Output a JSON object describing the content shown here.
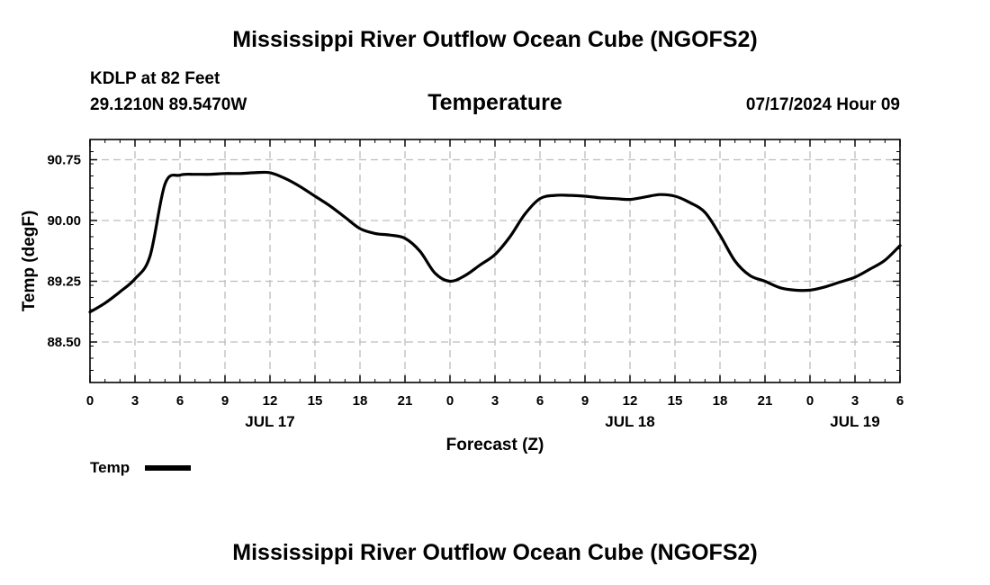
{
  "header": {
    "title": "Mississippi River Outflow Ocean Cube (NGOFS2)",
    "station": "KDLP at 82 Feet",
    "coords": "29.1210N  89.5470W",
    "variable": "Temperature",
    "datetime": "07/17/2024 Hour 09"
  },
  "footer": {
    "title": "Mississippi River Outflow Ocean Cube (NGOFS2)"
  },
  "chart_data": {
    "type": "line",
    "title": "Temperature",
    "xlabel": "Forecast (Z)",
    "ylabel": "Temp (degF)",
    "ylim": [
      88.0,
      91.0
    ],
    "xlim": [
      0,
      54
    ],
    "grid": true,
    "x_ticks": [
      0,
      3,
      6,
      9,
      12,
      15,
      18,
      21,
      24,
      27,
      30,
      33,
      36,
      39,
      42,
      45,
      48,
      51,
      54
    ],
    "x_tick_labels": [
      "0",
      "3",
      "6",
      "9",
      "12",
      "15",
      "18",
      "21",
      "0",
      "3",
      "6",
      "9",
      "12",
      "15",
      "18",
      "21",
      "0",
      "3",
      "6"
    ],
    "date_labels": [
      {
        "hour": 12,
        "label": "JUL 17"
      },
      {
        "hour": 36,
        "label": "JUL 18"
      },
      {
        "hour": 51,
        "label": "JUL 19"
      }
    ],
    "y_ticks": [
      88.5,
      89.25,
      90.0,
      90.75
    ],
    "y_tick_labels": [
      "88.50",
      "89.25",
      "90.00",
      "90.75"
    ],
    "legend": {
      "label": "Temp",
      "position": "bottom-left"
    },
    "series": [
      {
        "name": "Temp",
        "x": [
          0,
          1,
          2,
          3,
          4,
          5,
          6,
          7,
          8,
          9,
          10,
          11,
          12,
          13,
          14,
          15,
          16,
          17,
          18,
          19,
          20,
          21,
          22,
          23,
          24,
          25,
          26,
          27,
          28,
          29,
          30,
          31,
          32,
          33,
          34,
          35,
          36,
          37,
          38,
          39,
          40,
          41,
          42,
          43,
          44,
          45,
          46,
          47,
          48,
          49,
          50,
          51,
          52,
          53,
          54
        ],
        "values": [
          88.87,
          88.98,
          89.12,
          89.28,
          89.56,
          90.45,
          90.56,
          90.57,
          90.57,
          90.58,
          90.58,
          90.59,
          90.59,
          90.52,
          90.42,
          90.3,
          90.18,
          90.04,
          89.9,
          89.84,
          89.82,
          89.78,
          89.62,
          89.35,
          89.25,
          89.32,
          89.45,
          89.58,
          89.8,
          90.08,
          90.27,
          90.31,
          90.31,
          90.3,
          90.28,
          90.27,
          90.26,
          90.29,
          90.32,
          90.3,
          90.22,
          90.1,
          89.82,
          89.5,
          89.32,
          89.25,
          89.17,
          89.14,
          89.14,
          89.18,
          89.24,
          89.3,
          89.4,
          89.51,
          89.69
        ]
      }
    ]
  }
}
